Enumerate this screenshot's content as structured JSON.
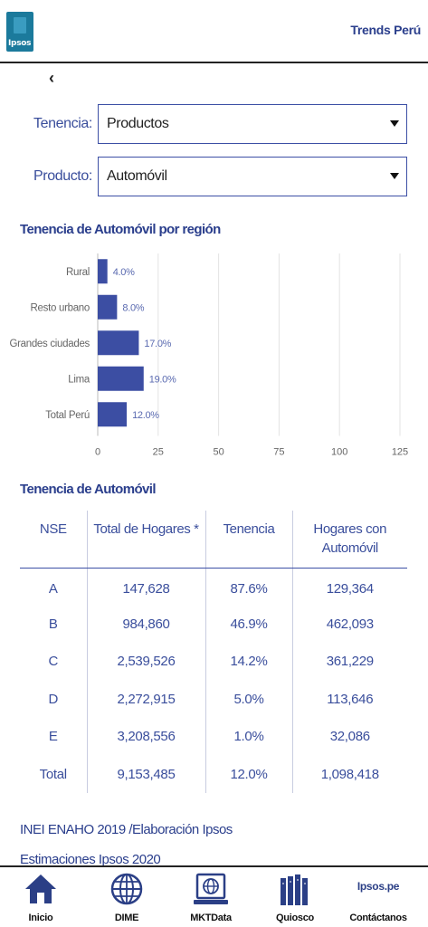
{
  "header": {
    "logo_text": "Ipsos",
    "title": "Trends Perú",
    "back_glyph": "‹"
  },
  "filters": {
    "tenencia": {
      "label": "Tenencia:",
      "value": "Productos"
    },
    "producto": {
      "label": "Producto:",
      "value": "Automóvil"
    }
  },
  "chart_section": {
    "title": "Tenencia de Automóvil por región"
  },
  "chart_data": {
    "type": "bar",
    "orientation": "horizontal",
    "title": "Tenencia de Automóvil por región",
    "categories": [
      "Rural",
      "Resto urbano",
      "Grandes ciudades",
      "Lima",
      "Total Perú"
    ],
    "values": [
      4.0,
      8.0,
      17.0,
      19.0,
      12.0
    ],
    "data_labels": [
      "4.0%",
      "8.0%",
      "17.0%",
      "19.0%",
      "12.0%"
    ],
    "xlim": [
      0,
      125
    ],
    "xticks": [
      "0",
      "25",
      "50",
      "75",
      "100",
      "125"
    ],
    "grid": true,
    "bar_color": "#3c4ea3"
  },
  "table_section": {
    "title": "Tenencia de Automóvil",
    "headers": [
      "NSE",
      "Total de Hogares *",
      "Tenencia",
      "Hogares con Automóvil"
    ],
    "rows": [
      [
        "A",
        "147,628",
        "87.6%",
        "129,364"
      ],
      [
        "B",
        "984,860",
        "46.9%",
        "462,093"
      ],
      [
        "C",
        "2,539,526",
        "14.2%",
        "361,229"
      ],
      [
        "D",
        "2,272,915",
        "5.0%",
        "113,646"
      ],
      [
        "E",
        "3,208,556",
        "1.0%",
        "32,086"
      ],
      [
        "Total",
        "9,153,485",
        "12.0%",
        "1,098,418"
      ]
    ]
  },
  "sources": {
    "line1": "INEI ENAHO 2019 /Elaboración Ipsos",
    "line2": "Estimaciones Ipsos 2020"
  },
  "nav": {
    "items": [
      {
        "label": "Inicio",
        "icon": "home-icon"
      },
      {
        "label": "DIME",
        "icon": "globe-icon"
      },
      {
        "label": "MKTData",
        "icon": "laptop-globe-icon"
      },
      {
        "label": "Quiosco",
        "icon": "magazines-icon"
      },
      {
        "label": "Contáctanos",
        "icon": "ipsos-pe-icon",
        "icon_text": "Ipsos.pe"
      }
    ]
  },
  "colors": {
    "accent": "#2a3e8c",
    "bar": "#3c4ea3",
    "nav_icon": "#2b3f86"
  }
}
